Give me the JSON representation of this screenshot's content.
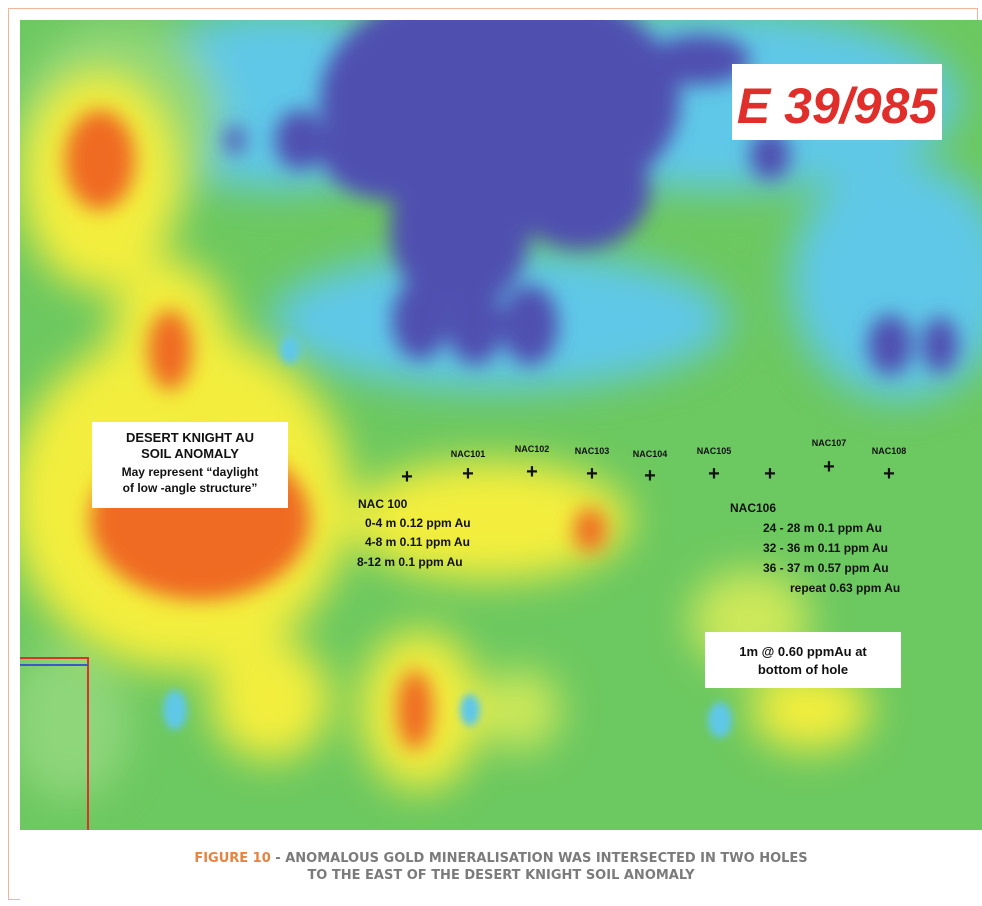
{
  "map": {
    "tenement_label": "E 39/985",
    "anomaly_box": {
      "line1": "DESERT KNIGHT AU",
      "line2": "SOIL ANOMALY",
      "line3": "May represent “daylight",
      "line4": "of low -angle structure”"
    },
    "holes": [
      {
        "id": "NAC 100",
        "label": ""
      },
      {
        "id": "NAC101",
        "label": "NAC101"
      },
      {
        "id": "NAC102",
        "label": "NAC102"
      },
      {
        "id": "NAC103",
        "label": "NAC103"
      },
      {
        "id": "NAC104",
        "label": "NAC104"
      },
      {
        "id": "NAC105",
        "label": "NAC105"
      },
      {
        "id": "NAC106",
        "label": ""
      },
      {
        "id": "NAC107",
        "label": "NAC107"
      },
      {
        "id": "NAC108",
        "label": "NAC108"
      }
    ],
    "nac100": {
      "title": "NAC 100",
      "intervals": [
        "0-4 m  0.12 ppm Au",
        "4-8 m  0.11 ppm Au",
        "8-12 m  0.1 ppm Au"
      ]
    },
    "nac106": {
      "title": "NAC106",
      "intervals": [
        "24 - 28 m  0.1 ppm Au",
        "32 - 36 m  0.11 ppm Au",
        "36 - 37 m  0.57 ppm Au",
        "repeat 0.63 ppm Au"
      ]
    },
    "bottom_note": {
      "line1": "1m @ 0.60 ppmAu at",
      "line2": "bottom of hole"
    },
    "colors": {
      "low": "#4f4fb0",
      "mid_low": "#5ec8e8",
      "mid": "#6cc860",
      "high": "#f3ee3c",
      "very_high": "#ef6a22",
      "tenement_text": "#e02e2a",
      "caption_accent": "#e8823f"
    }
  },
  "caption": {
    "figure": "FIGURE 10",
    "line1": " - ANOMALOUS GOLD MINERALISATION WAS INTERSECTED IN TWO HOLES",
    "line2": "TO THE EAST OF THE DESERT KNIGHT SOIL ANOMALY"
  }
}
